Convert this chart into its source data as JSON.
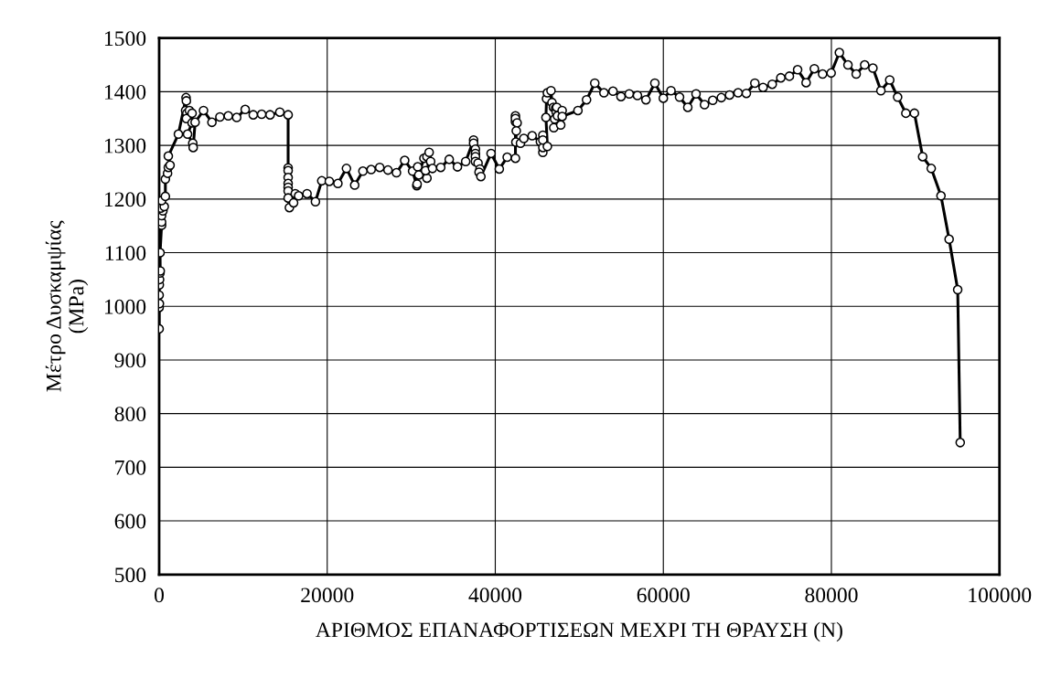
{
  "chart_data": {
    "type": "line",
    "xlabel": "ΑΡΙΘΜΟΣ ΕΠΑΝΑΦΟΡΤΙΣΕΩΝ ΜΕΧΡΙ ΤΗ ΘΡΑΥΣΗ (N)",
    "ylabel": "Μέτρο Δυσκαμψίας\n(MPa)",
    "xlim": [
      0,
      100000
    ],
    "xticks": [
      0,
      20000,
      40000,
      60000,
      80000,
      100000
    ],
    "ylim": [
      500,
      1500
    ],
    "yticks": [
      500,
      600,
      700,
      800,
      900,
      1000,
      1100,
      1200,
      1300,
      1400,
      1500
    ],
    "grid": true,
    "marker": "circle",
    "line_style": "solid",
    "series": [
      {
        "color": "#000000",
        "x": [
          0,
          0,
          30,
          0,
          20,
          50,
          100,
          130,
          110,
          290,
          290,
          290,
          450,
          200,
          610,
          290,
          740,
          740,
          1000,
          1090,
          1300,
          1090,
          2290,
          3200,
          3240,
          3150,
          3300,
          3250,
          3600,
          3920,
          3920,
          3380,
          4000,
          4050,
          4280,
          5280,
          6280,
          7230,
          8230,
          9230,
          10240,
          11200,
          12200,
          13200,
          14360,
          15350,
          15350,
          15350,
          15350,
          15350,
          15350,
          15350,
          15350,
          15500,
          16000,
          16200,
          16600,
          17600,
          18600,
          19350,
          20250,
          21270,
          22290,
          23270,
          24250,
          25230,
          26250,
          27230,
          28240,
          29220,
          30160,
          30660,
          30700,
          30770,
          30900,
          31510,
          31870,
          32130,
          31870,
          32310,
          31700,
          32530,
          33510,
          34520,
          35500,
          36480,
          37420,
          37420,
          37640,
          37640,
          37640,
          37640,
          37950,
          38180,
          38070,
          38290,
          39500,
          40480,
          41420,
          42400,
          42400,
          42400,
          42400,
          42600,
          42500,
          42450,
          43000,
          43400,
          44390,
          45370,
          45660,
          45660,
          45660,
          45660,
          46200,
          46030,
          46100,
          46200,
          46630,
          46750,
          46920,
          47060,
          46960,
          47180,
          47250,
          47320,
          47400,
          47790,
          47960,
          47960,
          49840,
          50860,
          51840,
          52930,
          54010,
          54960,
          55940,
          56920,
          57930,
          58990,
          60000,
          60910,
          61930,
          62910,
          63890,
          64900,
          65880,
          66900,
          67880,
          68900,
          69880,
          70890,
          71870,
          72960,
          73980,
          75000,
          75980,
          76990,
          77970,
          78950,
          79970,
          80950,
          81970,
          82950,
          83960,
          84940,
          85890,
          86940,
          87880,
          88860,
          89880,
          90860,
          91880,
          93040,
          94010,
          95030,
          95330
        ],
        "values": [
          958,
          998,
          1005,
          1021,
          1040,
          1050,
          1062,
          1066,
          1100,
          1151,
          1157,
          1169,
          1178,
          1183,
          1186,
          1197,
          1205,
          1237,
          1248,
          1259,
          1263,
          1280,
          1321,
          1389,
          1383,
          1365,
          1360,
          1350,
          1365,
          1360,
          1342,
          1321,
          1304,
          1296,
          1343,
          1365,
          1343,
          1353,
          1355,
          1352,
          1367,
          1357,
          1358,
          1357,
          1362,
          1357,
          1258,
          1253,
          1240,
          1229,
          1222,
          1215,
          1202,
          1184,
          1193,
          1210,
          1206,
          1210,
          1195,
          1234,
          1233,
          1229,
          1257,
          1226,
          1252,
          1255,
          1259,
          1254,
          1249,
          1272,
          1252,
          1225,
          1228,
          1260,
          1245,
          1276,
          1279,
          1287,
          1239,
          1270,
          1253,
          1257,
          1259,
          1274,
          1260,
          1270,
          1310,
          1304,
          1293,
          1285,
          1279,
          1270,
          1267,
          1256,
          1250,
          1242,
          1285,
          1256,
          1278,
          1276,
          1355,
          1344,
          1350,
          1342,
          1327,
          1306,
          1304,
          1313,
          1318,
          1307,
          1287,
          1296,
          1319,
          1310,
          1298,
          1352,
          1387,
          1398,
          1402,
          1380,
          1371,
          1349,
          1333,
          1369,
          1362,
          1371,
          1355,
          1338,
          1365,
          1354,
          1365,
          1385,
          1416,
          1398,
          1401,
          1391,
          1396,
          1393,
          1385,
          1416,
          1388,
          1402,
          1390,
          1371,
          1396,
          1376,
          1384,
          1389,
          1394,
          1398,
          1397,
          1416,
          1408,
          1414,
          1426,
          1429,
          1441,
          1417,
          1443,
          1433,
          1435,
          1473,
          1450,
          1433,
          1450,
          1444,
          1402,
          1422,
          1390,
          1360,
          1360,
          1279,
          1257,
          1206,
          1125,
          1031,
          746
        ]
      }
    ]
  }
}
